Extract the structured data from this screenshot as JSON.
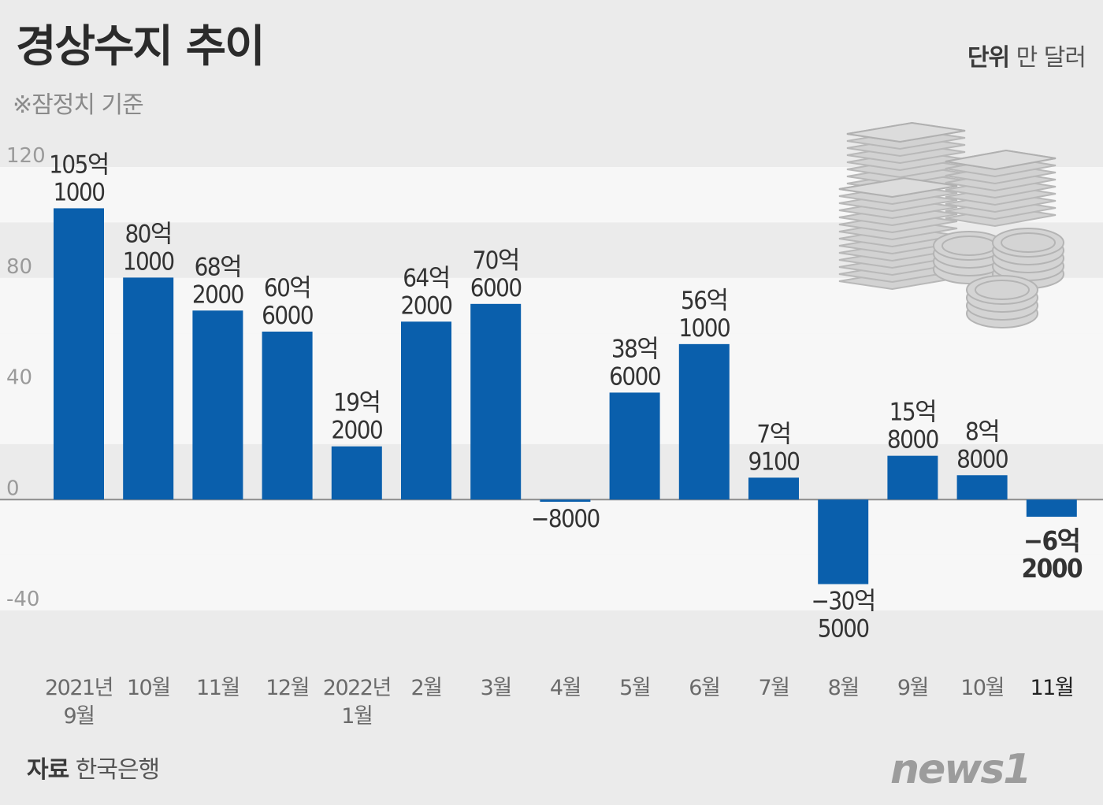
{
  "header": {
    "title": "경상수지 추이",
    "subtitle": "※잠정치 기준",
    "unit_label": "단위",
    "unit_value": "만 달러"
  },
  "footer": {
    "source_label": "자료",
    "source_value": "한국은행",
    "logo_text": "news1"
  },
  "colors": {
    "bar": "#0a5fac",
    "zero_line": "#888888",
    "money_icon": "#c8c8c8"
  },
  "icons": [
    "money-stack-icon",
    "coin-stack-icon"
  ],
  "chart_data": {
    "type": "bar",
    "title": "경상수지 추이",
    "unit": "만 달러",
    "ylim": [
      -40,
      120
    ],
    "yticks": [
      "120",
      "80",
      "40",
      "0",
      "-40"
    ],
    "grid": "alternating horizontal bands",
    "categories": [
      [
        "2021년",
        "9월"
      ],
      [
        "10월"
      ],
      [
        "11월"
      ],
      [
        "12월"
      ],
      [
        "2022년",
        "1월"
      ],
      [
        "2월"
      ],
      [
        "3월"
      ],
      [
        "4월"
      ],
      [
        "5월"
      ],
      [
        "6월"
      ],
      [
        "7월"
      ],
      [
        "8월"
      ],
      [
        "9월"
      ],
      [
        "10월"
      ],
      [
        "11월"
      ]
    ],
    "values": [
      105.1,
      80.1,
      68.2,
      60.6,
      19.2,
      64.2,
      70.6,
      -0.8,
      38.6,
      56.1,
      7.91,
      -30.5,
      15.8,
      8.8,
      -6.2
    ],
    "data_labels": [
      [
        "105억",
        "1000"
      ],
      [
        "80억",
        "1000"
      ],
      [
        "68억",
        "2000"
      ],
      [
        "60억",
        "6000"
      ],
      [
        "19억",
        "2000"
      ],
      [
        "64억",
        "2000"
      ],
      [
        "70억",
        "6000"
      ],
      [
        "-8000"
      ],
      [
        "38억",
        "6000"
      ],
      [
        "56억",
        "1000"
      ],
      [
        "7억",
        "9100"
      ],
      [
        "-30억",
        "5000"
      ],
      [
        "15억",
        "8000"
      ],
      [
        "8억",
        "8000"
      ],
      [
        "-6억",
        "2000"
      ]
    ]
  }
}
